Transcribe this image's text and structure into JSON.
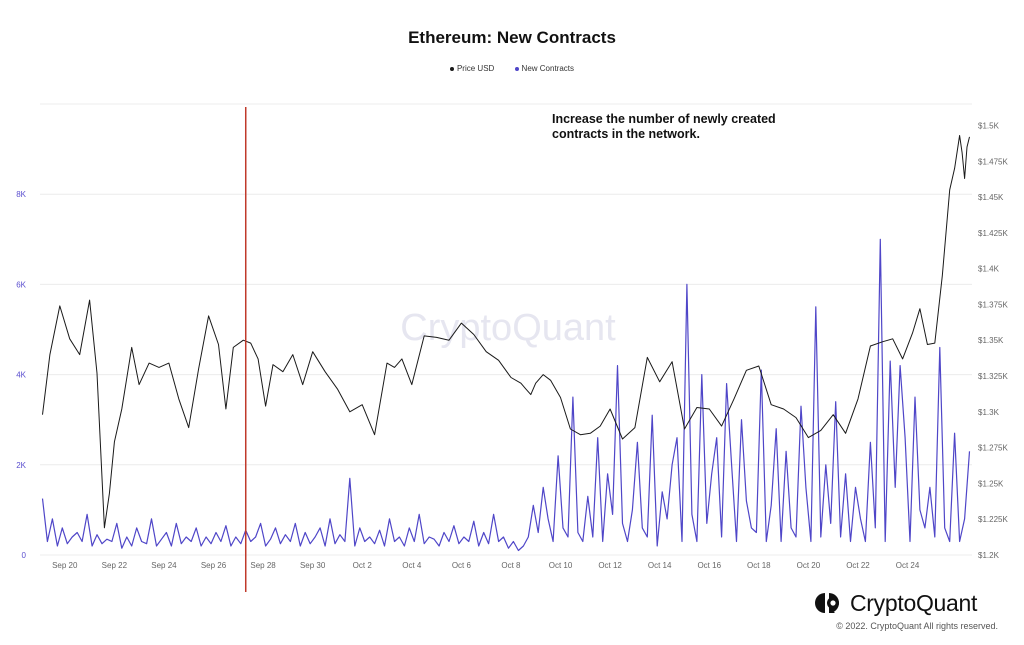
{
  "chart_data": {
    "type": "line",
    "title": "Ethereum: New Contracts",
    "legend": {
      "placement": "top-center"
    },
    "grid": "horizontal",
    "x": {
      "ticks": [
        "Sep 20",
        "Sep 22",
        "Sep 24",
        "Sep 26",
        "Sep 28",
        "Sep 30",
        "Oct 2",
        "Oct 4",
        "Oct 6",
        "Oct 8",
        "Oct 10",
        "Oct 12",
        "Oct 14",
        "Oct 16",
        "Oct 18",
        "Oct 20",
        "Oct 22",
        "Oct 24"
      ],
      "range": [
        19.0,
        56.6
      ]
    },
    "y_left": {
      "ticks": [
        "0",
        "2K",
        "4K",
        "6K",
        "8K"
      ],
      "range": [
        0,
        10000
      ]
    },
    "y_right": {
      "ticks": [
        "$1.2K",
        "$1.225K",
        "$1.25K",
        "$1.275K",
        "$1.3K",
        "$1.325K",
        "$1.35K",
        "$1.375K",
        "$1.4K",
        "$1.425K",
        "$1.45K",
        "$1.475K",
        "$1.5K"
      ],
      "range": [
        1200,
        1515
      ]
    },
    "series": [
      {
        "name": "Price USD",
        "color": "#1a1a1a",
        "axis": "right",
        "x": [
          19.1,
          19.4,
          19.8,
          20.2,
          20.6,
          21.0,
          21.3,
          21.6,
          21.8,
          22.0,
          22.3,
          22.7,
          23.0,
          23.4,
          23.8,
          24.2,
          24.6,
          25.0,
          25.4,
          25.8,
          26.2,
          26.5,
          26.8,
          27.2,
          27.5,
          27.8,
          28.1,
          28.4,
          28.8,
          29.2,
          29.6,
          30.0,
          30.5,
          31.0,
          31.5,
          32.0,
          32.5,
          33.0,
          33.3,
          33.6,
          34.0,
          34.5,
          35.0,
          35.5,
          36.0,
          36.5,
          37.0,
          37.5,
          38.0,
          38.4,
          38.6,
          38.8,
          39.0,
          39.3,
          39.6,
          40.0,
          40.4,
          40.8,
          41.2,
          41.6,
          42.0,
          42.5,
          43.0,
          43.5,
          44.0,
          44.5,
          45.0,
          45.5,
          46.0,
          46.5,
          47.0,
          47.5,
          48.0,
          48.5,
          49.0,
          49.5,
          50.0,
          50.5,
          51.0,
          51.5,
          52.0,
          52.5,
          53.0,
          53.4,
          53.8,
          54.2,
          54.5,
          54.8,
          55.1,
          55.4,
          55.7,
          55.9,
          56.1,
          56.2,
          56.3,
          56.4,
          56.5
        ],
        "values": [
          1298,
          1340,
          1374,
          1351,
          1340,
          1378,
          1327,
          1219,
          1243,
          1279,
          1302,
          1345,
          1319,
          1334,
          1331,
          1334,
          1309,
          1289,
          1330,
          1367,
          1347,
          1302,
          1345,
          1350,
          1348,
          1337,
          1304,
          1333,
          1328,
          1340,
          1319,
          1342,
          1328,
          1316,
          1300,
          1305,
          1284,
          1334,
          1331,
          1337,
          1319,
          1353,
          1352,
          1350,
          1362,
          1354,
          1342,
          1336,
          1324,
          1320,
          1316,
          1312,
          1320,
          1326,
          1322,
          1310,
          1288,
          1284,
          1285,
          1290,
          1302,
          1281,
          1289,
          1338,
          1321,
          1335,
          1288,
          1303,
          1302,
          1290,
          1309,
          1329,
          1332,
          1305,
          1302,
          1296,
          1282,
          1287,
          1298,
          1285,
          1309,
          1346,
          1349,
          1351,
          1337,
          1355,
          1372,
          1347,
          1348,
          1395,
          1455,
          1470,
          1493,
          1481,
          1463,
          1485,
          1492
        ]
      },
      {
        "name": "New Contracts",
        "color": "#4f46c8",
        "axis": "left",
        "x": [
          19.1,
          19.3,
          19.5,
          19.7,
          19.9,
          20.1,
          20.3,
          20.5,
          20.7,
          20.9,
          21.1,
          21.3,
          21.5,
          21.7,
          21.9,
          22.1,
          22.3,
          22.5,
          22.7,
          22.9,
          23.1,
          23.3,
          23.5,
          23.7,
          23.9,
          24.1,
          24.3,
          24.5,
          24.7,
          24.9,
          25.1,
          25.3,
          25.5,
          25.7,
          25.9,
          26.1,
          26.3,
          26.5,
          26.7,
          26.9,
          27.1,
          27.3,
          27.5,
          27.7,
          27.9,
          28.1,
          28.3,
          28.5,
          28.7,
          28.9,
          29.1,
          29.3,
          29.5,
          29.7,
          29.9,
          30.1,
          30.3,
          30.5,
          30.7,
          30.9,
          31.1,
          31.3,
          31.5,
          31.7,
          31.9,
          32.1,
          32.3,
          32.5,
          32.7,
          32.9,
          33.1,
          33.3,
          33.5,
          33.7,
          33.9,
          34.1,
          34.3,
          34.5,
          34.7,
          34.9,
          35.1,
          35.3,
          35.5,
          35.7,
          35.9,
          36.1,
          36.3,
          36.5,
          36.7,
          36.9,
          37.1,
          37.3,
          37.5,
          37.7,
          37.9,
          38.1,
          38.3,
          38.5,
          38.7,
          38.9,
          39.1,
          39.3,
          39.5,
          39.7,
          39.9,
          40.1,
          40.3,
          40.5,
          40.7,
          40.9,
          41.1,
          41.3,
          41.5,
          41.7,
          41.9,
          42.1,
          42.3,
          42.5,
          42.7,
          42.9,
          43.1,
          43.3,
          43.5,
          43.7,
          43.9,
          44.1,
          44.3,
          44.5,
          44.7,
          44.9,
          45.1,
          45.3,
          45.5,
          45.7,
          45.9,
          46.1,
          46.3,
          46.5,
          46.7,
          46.9,
          47.1,
          47.3,
          47.5,
          47.7,
          47.9,
          48.1,
          48.3,
          48.5,
          48.7,
          48.9,
          49.1,
          49.3,
          49.5,
          49.7,
          49.9,
          50.1,
          50.3,
          50.5,
          50.7,
          50.9,
          51.1,
          51.3,
          51.5,
          51.7,
          51.9,
          52.1,
          52.3,
          52.5,
          52.7,
          52.9,
          53.1,
          53.3,
          53.5,
          53.7,
          53.9,
          54.1,
          54.3,
          54.5,
          54.7,
          54.9,
          55.1,
          55.3,
          55.5,
          55.7,
          55.9,
          56.1,
          56.3,
          56.5
        ],
        "values": [
          1250,
          300,
          800,
          200,
          600,
          250,
          400,
          500,
          300,
          900,
          200,
          450,
          250,
          350,
          300,
          700,
          150,
          400,
          200,
          600,
          300,
          250,
          800,
          200,
          350,
          500,
          200,
          700,
          250,
          400,
          300,
          600,
          200,
          400,
          250,
          500,
          300,
          650,
          200,
          400,
          250,
          550,
          300,
          400,
          700,
          200,
          350,
          600,
          250,
          450,
          300,
          700,
          200,
          500,
          250,
          400,
          600,
          200,
          800,
          250,
          450,
          300,
          1700,
          200,
          600,
          300,
          400,
          250,
          550,
          200,
          800,
          300,
          400,
          200,
          600,
          300,
          900,
          250,
          400,
          350,
          200,
          500,
          300,
          650,
          250,
          400,
          300,
          750,
          200,
          500,
          250,
          900,
          300,
          400,
          150,
          300,
          100,
          200,
          400,
          1100,
          500,
          1500,
          800,
          300,
          2200,
          600,
          400,
          3500,
          500,
          300,
          1300,
          400,
          2600,
          300,
          1800,
          900,
          4200,
          700,
          300,
          1000,
          2500,
          600,
          400,
          3100,
          200,
          1400,
          800,
          2000,
          2600,
          300,
          6000,
          900,
          300,
          4000,
          700,
          1800,
          2600,
          400,
          3800,
          2000,
          300,
          3000,
          1200,
          600,
          500,
          4100,
          300,
          1100,
          2800,
          300,
          2300,
          600,
          400,
          3300,
          1500,
          300,
          5500,
          400,
          2000,
          700,
          3400,
          400,
          1800,
          300,
          1500,
          800,
          300,
          2500,
          600,
          7000,
          300,
          4300,
          1500,
          4200,
          2600,
          300,
          3500,
          1000,
          600,
          1500,
          400,
          4600,
          600,
          300,
          2700,
          300,
          800,
          2300
        ]
      }
    ],
    "annotations": [
      {
        "text": "Increase the number of newly created contracts in the network.",
        "x": 27.3,
        "color": "#c0392b"
      }
    ],
    "watermark": "CryptoQuant"
  },
  "footer": {
    "brand": "CryptoQuant",
    "copyright": "© 2022. CryptoQuant All rights reserved."
  }
}
